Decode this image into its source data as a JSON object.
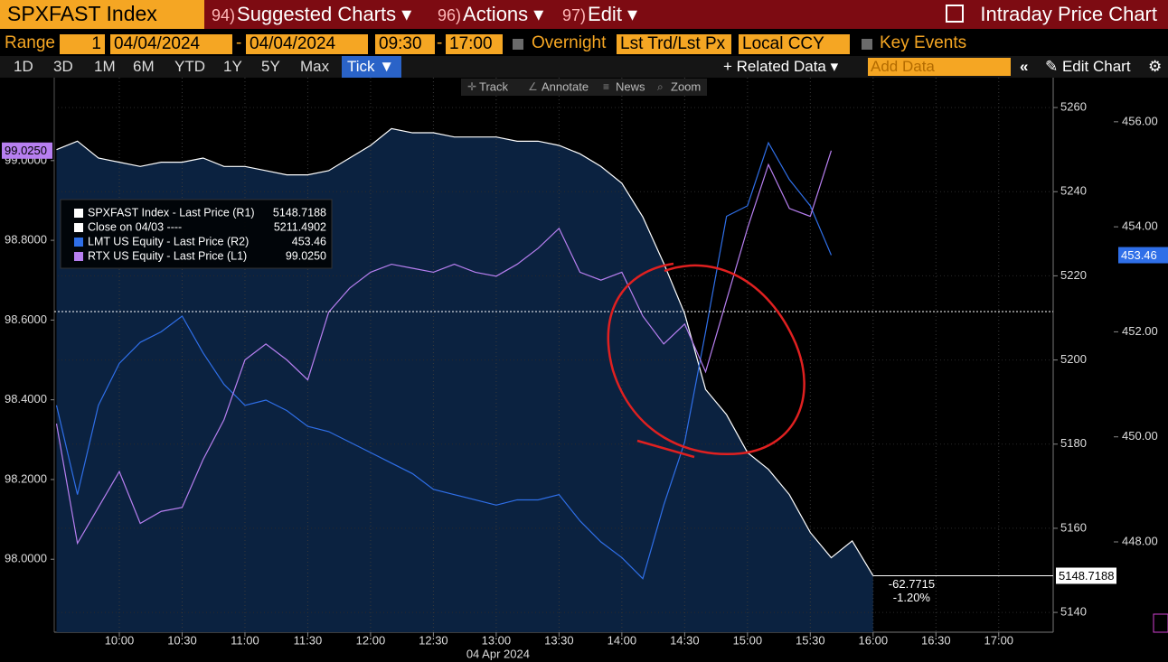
{
  "header": {
    "ticker": "SPXFAST Index",
    "menus": [
      {
        "num": "94)",
        "label": "Suggested Charts"
      },
      {
        "num": "96)",
        "label": "Actions"
      },
      {
        "num": "97)",
        "label": "Edit"
      }
    ],
    "title": "Intraday Price Chart"
  },
  "controls": {
    "range_label": "Range",
    "range_value": "1",
    "start_date": "04/04/2024",
    "separator": "-",
    "end_date": "04/04/2024",
    "start_time": "09:30",
    "end_time": "17:00",
    "overnight": "Overnight",
    "price_type": "Lst Trd/Lst Px",
    "currency": "Local CCY",
    "key_events": "Key Events"
  },
  "periods": [
    "1D",
    "3D",
    "1M",
    "6M",
    "YTD",
    "1Y",
    "5Y",
    "Max"
  ],
  "active_period": "Tick",
  "actions": {
    "related": "Related Data",
    "add_data": "Add Data",
    "edit": "Edit Chart"
  },
  "toolbar": [
    "Track",
    "Annotate",
    "News",
    "Zoom"
  ],
  "chart_data": {
    "type": "line",
    "x": [
      570,
      580,
      590,
      600,
      610,
      620,
      630,
      640,
      650,
      660,
      670,
      680,
      690,
      700,
      710,
      720,
      730,
      740,
      750,
      760,
      770,
      780,
      790,
      800,
      810,
      820,
      830,
      840,
      850,
      860,
      870,
      880,
      890,
      900,
      910,
      920,
      930,
      940,
      950,
      960
    ],
    "xlim": [
      570,
      1046
    ],
    "xticks": [
      {
        "value": 600,
        "label": "10:00"
      },
      {
        "value": 630,
        "label": "10:30"
      },
      {
        "value": 660,
        "label": "11:00"
      },
      {
        "value": 690,
        "label": "11:30"
      },
      {
        "value": 720,
        "label": "12:00"
      },
      {
        "value": 750,
        "label": "12:30"
      },
      {
        "value": 780,
        "label": "13:00"
      },
      {
        "value": 810,
        "label": "13:30"
      },
      {
        "value": 840,
        "label": "14:00"
      },
      {
        "value": 870,
        "label": "14:30"
      },
      {
        "value": 900,
        "label": "15:00"
      },
      {
        "value": 930,
        "label": "15:30"
      },
      {
        "value": 960,
        "label": "16:00"
      },
      {
        "value": 990,
        "label": "16:30"
      },
      {
        "value": 1020,
        "label": "17:00"
      }
    ],
    "xlabel": "04 Apr 2024",
    "ylim": [
      97.817,
      99.208
    ],
    "yticks": [
      {
        "value": 98,
        "label": "98.0000"
      },
      {
        "value": 98.2,
        "label": "98.2000"
      },
      {
        "value": 98.4,
        "label": "98.4000"
      },
      {
        "value": 98.6,
        "label": "98.6000"
      },
      {
        "value": 98.8,
        "label": "98.8000"
      },
      {
        "value": 99,
        "label": "99.0000"
      }
    ],
    "y2lim": [
      5135.3,
      5267.1
    ],
    "y2ticks": [
      5140,
      5160,
      5180,
      5200,
      5220,
      5240,
      5260
    ],
    "y3lim": [
      446.28,
      456.84
    ],
    "y3ticks": [
      {
        "value": 448,
        "label": "448.00"
      },
      {
        "value": 450,
        "label": "450.00"
      },
      {
        "value": 452,
        "label": "452.00"
      },
      {
        "value": 454,
        "label": "454.00"
      },
      {
        "value": 456,
        "label": "456.00"
      }
    ],
    "grid": true,
    "series": [
      {
        "name": "SPXFAST Index - Last Price (R1)",
        "color": "#ffffff",
        "axis": "y2",
        "fill": "#0b2240",
        "values": [
          5250,
          5252,
          5248,
          5247,
          5246,
          5247,
          5247,
          5248,
          5246,
          5246,
          5245,
          5244,
          5244,
          5245,
          5248,
          5251,
          5255,
          5254,
          5254,
          5253,
          5253,
          5253,
          5252,
          5252,
          5251,
          5249,
          5246,
          5242,
          5234,
          5223,
          5211,
          5193,
          5187,
          5178,
          5174,
          5168,
          5159,
          5153,
          5157,
          5148.7188
        ],
        "value_labels": [
          null,
          null,
          null,
          null,
          null,
          null,
          null,
          null,
          null,
          null,
          null,
          null,
          null,
          null,
          null,
          null,
          null,
          null,
          null,
          null,
          null,
          null,
          null,
          null,
          null,
          null,
          null,
          null,
          null,
          null,
          null,
          null,
          null,
          null,
          null,
          null,
          null,
          null,
          null,
          "5148.7188"
        ]
      },
      {
        "name": "LMT US Equity - Last Price (R2)",
        "color": "#2f6fe8",
        "axis": "y3",
        "values": [
          450.6,
          448.9,
          450.6,
          451.4,
          451.8,
          452.0,
          452.3,
          451.6,
          451.0,
          450.6,
          450.7,
          450.5,
          450.2,
          450.1,
          449.9,
          449.7,
          449.5,
          449.3,
          449.0,
          448.9,
          448.8,
          448.7,
          448.8,
          448.8,
          448.9,
          448.4,
          448.0,
          447.7,
          447.3,
          448.7,
          449.9,
          452.0,
          454.2,
          454.4,
          455.6,
          454.9,
          454.4,
          453.46,
          null,
          null
        ],
        "value_labels": [
          null,
          null,
          null,
          null,
          null,
          null,
          null,
          null,
          null,
          null,
          null,
          null,
          null,
          null,
          null,
          null,
          null,
          null,
          null,
          null,
          null,
          null,
          null,
          null,
          null,
          null,
          null,
          null,
          null,
          null,
          null,
          null,
          null,
          null,
          null,
          null,
          null,
          "453.46",
          null,
          null
        ]
      },
      {
        "name": "RTX US Equity - Last Price (L1)",
        "color": "#b77ff0",
        "axis": "y",
        "values": [
          98.34,
          98.04,
          98.13,
          98.22,
          98.09,
          98.12,
          98.13,
          98.25,
          98.35,
          98.5,
          98.54,
          98.5,
          98.45,
          98.62,
          98.68,
          98.72,
          98.74,
          98.73,
          98.72,
          98.74,
          98.72,
          98.71,
          98.74,
          98.78,
          98.83,
          98.72,
          98.7,
          98.72,
          98.61,
          98.54,
          98.59,
          98.47,
          98.65,
          98.83,
          98.99,
          98.88,
          98.86,
          99.025,
          null,
          null
        ],
        "value_labels": [
          null,
          null,
          null,
          null,
          null,
          null,
          null,
          null,
          null,
          null,
          null,
          null,
          null,
          null,
          null,
          null,
          null,
          null,
          null,
          null,
          null,
          null,
          null,
          null,
          null,
          null,
          null,
          null,
          null,
          null,
          null,
          null,
          null,
          null,
          null,
          null,
          null,
          "99.0250",
          null,
          null
        ]
      }
    ],
    "reference_lines": [
      {
        "name": "Close on 04/03 ----",
        "value": 5211.4902,
        "value_label": "5211.4902",
        "axis": "y2"
      }
    ],
    "annotations": [
      "-62.7715",
      "-1.20%"
    ]
  }
}
